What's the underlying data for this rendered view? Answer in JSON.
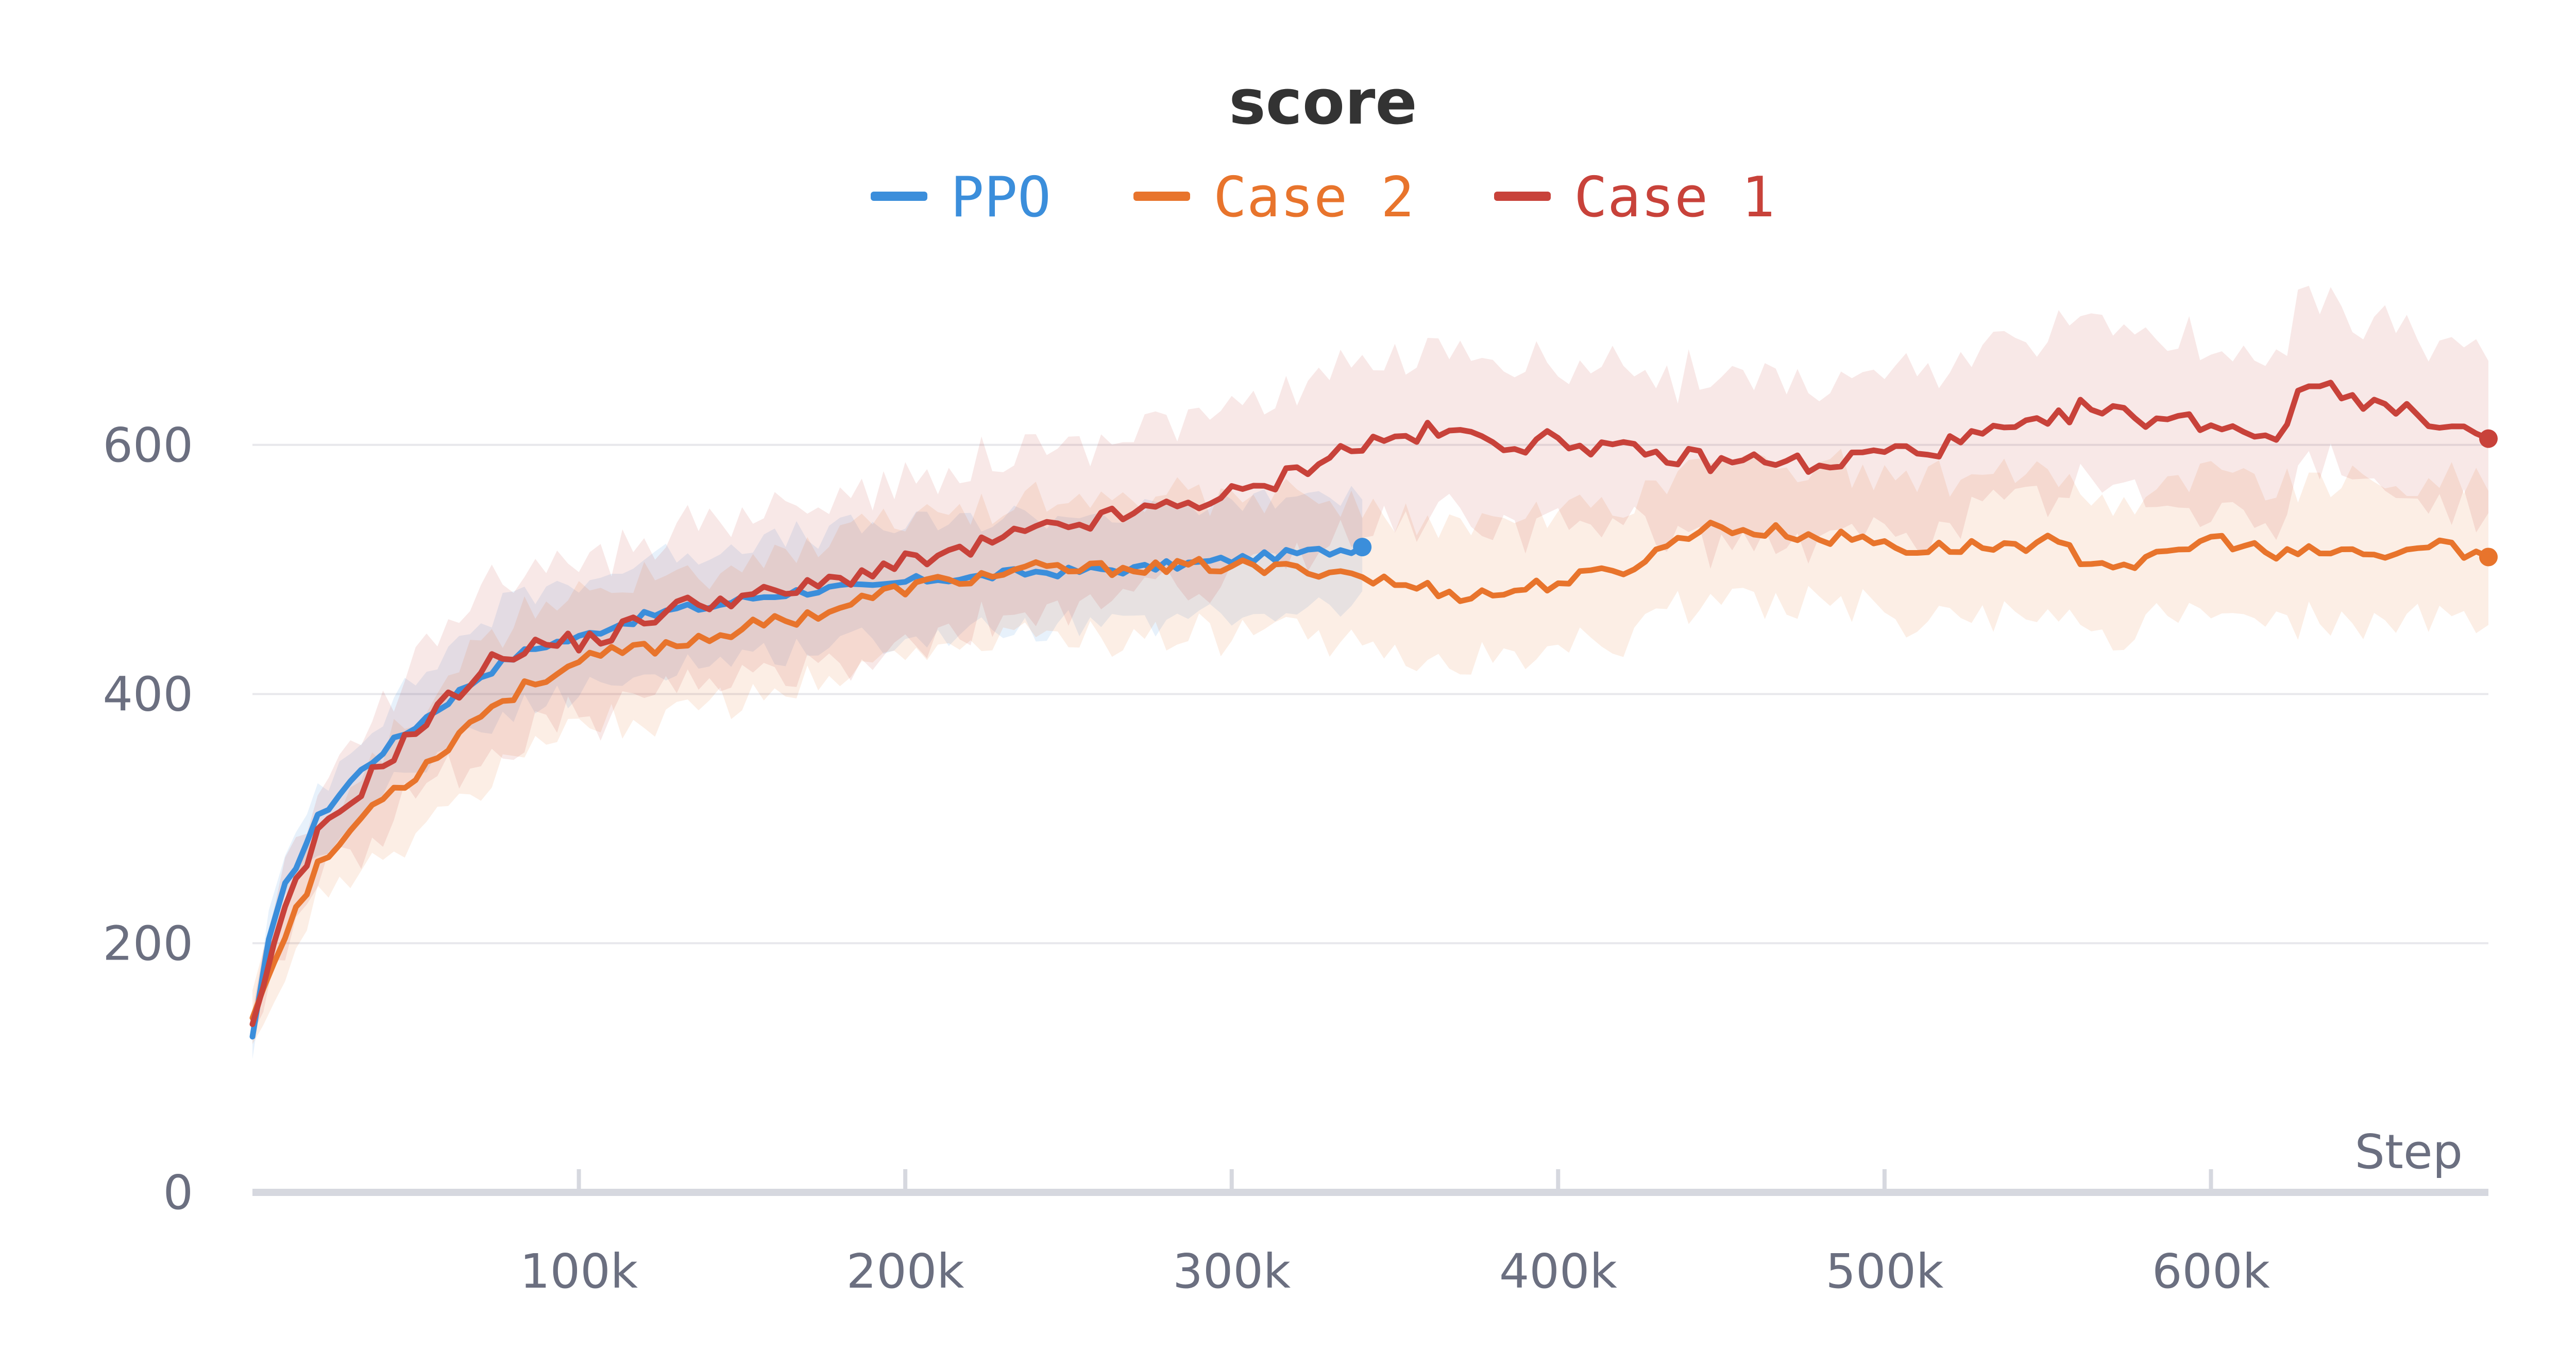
{
  "chart_data": {
    "type": "line",
    "title": "score",
    "xlabel": "Step",
    "ylabel": "",
    "xlim": [
      0,
      685000
    ],
    "ylim": [
      0,
      800
    ],
    "x_ticks": [
      100000,
      200000,
      300000,
      400000,
      500000,
      600000
    ],
    "x_tick_labels": [
      "100k",
      "200k",
      "300k",
      "400k",
      "500k",
      "600k"
    ],
    "y_ticks": [
      0,
      200,
      400,
      600
    ],
    "y_tick_labels": [
      "0",
      "200",
      "400",
      "600"
    ],
    "grid": "horizontal",
    "legend_position": "top",
    "series": [
      {
        "name": "PPO",
        "color": "#3b8edb",
        "band_width": 45,
        "points": [
          [
            0,
            125
          ],
          [
            5000,
            200
          ],
          [
            10000,
            245
          ],
          [
            20000,
            300
          ],
          [
            30000,
            330
          ],
          [
            40000,
            355
          ],
          [
            50000,
            375
          ],
          [
            60000,
            395
          ],
          [
            70000,
            415
          ],
          [
            80000,
            430
          ],
          [
            90000,
            440
          ],
          [
            100000,
            445
          ],
          [
            110000,
            455
          ],
          [
            120000,
            462
          ],
          [
            130000,
            468
          ],
          [
            140000,
            470
          ],
          [
            150000,
            476
          ],
          [
            160000,
            480
          ],
          [
            170000,
            483
          ],
          [
            180000,
            485
          ],
          [
            190000,
            485
          ],
          [
            200000,
            490
          ],
          [
            210000,
            493
          ],
          [
            220000,
            493
          ],
          [
            230000,
            496
          ],
          [
            240000,
            498
          ],
          [
            250000,
            498
          ],
          [
            260000,
            500
          ],
          [
            270000,
            500
          ],
          [
            280000,
            503
          ],
          [
            290000,
            505
          ],
          [
            300000,
            508
          ],
          [
            310000,
            510
          ],
          [
            320000,
            513
          ],
          [
            330000,
            515
          ],
          [
            340000,
            518
          ]
        ]
      },
      {
        "name": "Case 2",
        "color": "#e8742c",
        "band_width": 55,
        "points": [
          [
            0,
            140
          ],
          [
            10000,
            210
          ],
          [
            20000,
            260
          ],
          [
            30000,
            290
          ],
          [
            40000,
            320
          ],
          [
            50000,
            335
          ],
          [
            60000,
            360
          ],
          [
            70000,
            385
          ],
          [
            80000,
            400
          ],
          [
            90000,
            415
          ],
          [
            100000,
            425
          ],
          [
            110000,
            432
          ],
          [
            120000,
            437
          ],
          [
            130000,
            440
          ],
          [
            140000,
            447
          ],
          [
            150000,
            452
          ],
          [
            160000,
            458
          ],
          [
            170000,
            463
          ],
          [
            180000,
            470
          ],
          [
            190000,
            478
          ],
          [
            200000,
            485
          ],
          [
            210000,
            490
          ],
          [
            220000,
            493
          ],
          [
            230000,
            497
          ],
          [
            240000,
            500
          ],
          [
            250000,
            500
          ],
          [
            260000,
            500
          ],
          [
            270000,
            503
          ],
          [
            280000,
            500
          ],
          [
            290000,
            503
          ],
          [
            300000,
            503
          ],
          [
            310000,
            500
          ],
          [
            320000,
            500
          ],
          [
            330000,
            500
          ],
          [
            340000,
            495
          ],
          [
            350000,
            488
          ],
          [
            360000,
            485
          ],
          [
            370000,
            480
          ],
          [
            380000,
            480
          ],
          [
            390000,
            485
          ],
          [
            400000,
            490
          ],
          [
            410000,
            495
          ],
          [
            420000,
            500
          ],
          [
            430000,
            513
          ],
          [
            440000,
            530
          ],
          [
            450000,
            535
          ],
          [
            460000,
            530
          ],
          [
            470000,
            530
          ],
          [
            480000,
            525
          ],
          [
            490000,
            525
          ],
          [
            500000,
            522
          ],
          [
            510000,
            515
          ],
          [
            520000,
            518
          ],
          [
            530000,
            518
          ],
          [
            540000,
            520
          ],
          [
            550000,
            522
          ],
          [
            560000,
            510
          ],
          [
            570000,
            505
          ],
          [
            580000,
            505
          ],
          [
            590000,
            515
          ],
          [
            600000,
            525
          ],
          [
            610000,
            520
          ],
          [
            620000,
            510
          ],
          [
            630000,
            513
          ],
          [
            640000,
            515
          ],
          [
            650000,
            510
          ],
          [
            660000,
            515
          ],
          [
            670000,
            520
          ],
          [
            685000,
            510
          ]
        ]
      },
      {
        "name": "Case 1",
        "color": "#c8423a",
        "band_width": 65,
        "points": [
          [
            0,
            135
          ],
          [
            10000,
            225
          ],
          [
            20000,
            285
          ],
          [
            30000,
            315
          ],
          [
            40000,
            345
          ],
          [
            50000,
            370
          ],
          [
            60000,
            395
          ],
          [
            70000,
            420
          ],
          [
            80000,
            435
          ],
          [
            90000,
            440
          ],
          [
            100000,
            442
          ],
          [
            110000,
            448
          ],
          [
            120000,
            460
          ],
          [
            130000,
            470
          ],
          [
            140000,
            475
          ],
          [
            150000,
            478
          ],
          [
            160000,
            480
          ],
          [
            170000,
            485
          ],
          [
            180000,
            492
          ],
          [
            190000,
            500
          ],
          [
            200000,
            505
          ],
          [
            210000,
            510
          ],
          [
            220000,
            515
          ],
          [
            230000,
            525
          ],
          [
            240000,
            530
          ],
          [
            250000,
            535
          ],
          [
            260000,
            540
          ],
          [
            270000,
            545
          ],
          [
            280000,
            550
          ],
          [
            290000,
            555
          ],
          [
            300000,
            560
          ],
          [
            310000,
            565
          ],
          [
            320000,
            580
          ],
          [
            330000,
            592
          ],
          [
            340000,
            600
          ],
          [
            350000,
            605
          ],
          [
            360000,
            610
          ],
          [
            370000,
            608
          ],
          [
            380000,
            605
          ],
          [
            390000,
            600
          ],
          [
            400000,
            605
          ],
          [
            410000,
            600
          ],
          [
            420000,
            595
          ],
          [
            430000,
            590
          ],
          [
            440000,
            590
          ],
          [
            450000,
            585
          ],
          [
            460000,
            588
          ],
          [
            470000,
            590
          ],
          [
            480000,
            578
          ],
          [
            490000,
            590
          ],
          [
            500000,
            595
          ],
          [
            510000,
            595
          ],
          [
            520000,
            600
          ],
          [
            530000,
            608
          ],
          [
            540000,
            612
          ],
          [
            550000,
            615
          ],
          [
            560000,
            630
          ],
          [
            570000,
            625
          ],
          [
            580000,
            622
          ],
          [
            590000,
            620
          ],
          [
            600000,
            618
          ],
          [
            610000,
            612
          ],
          [
            620000,
            608
          ],
          [
            630000,
            650
          ],
          [
            640000,
            645
          ],
          [
            650000,
            632
          ],
          [
            660000,
            625
          ],
          [
            670000,
            620
          ],
          [
            685000,
            605
          ]
        ]
      }
    ]
  }
}
